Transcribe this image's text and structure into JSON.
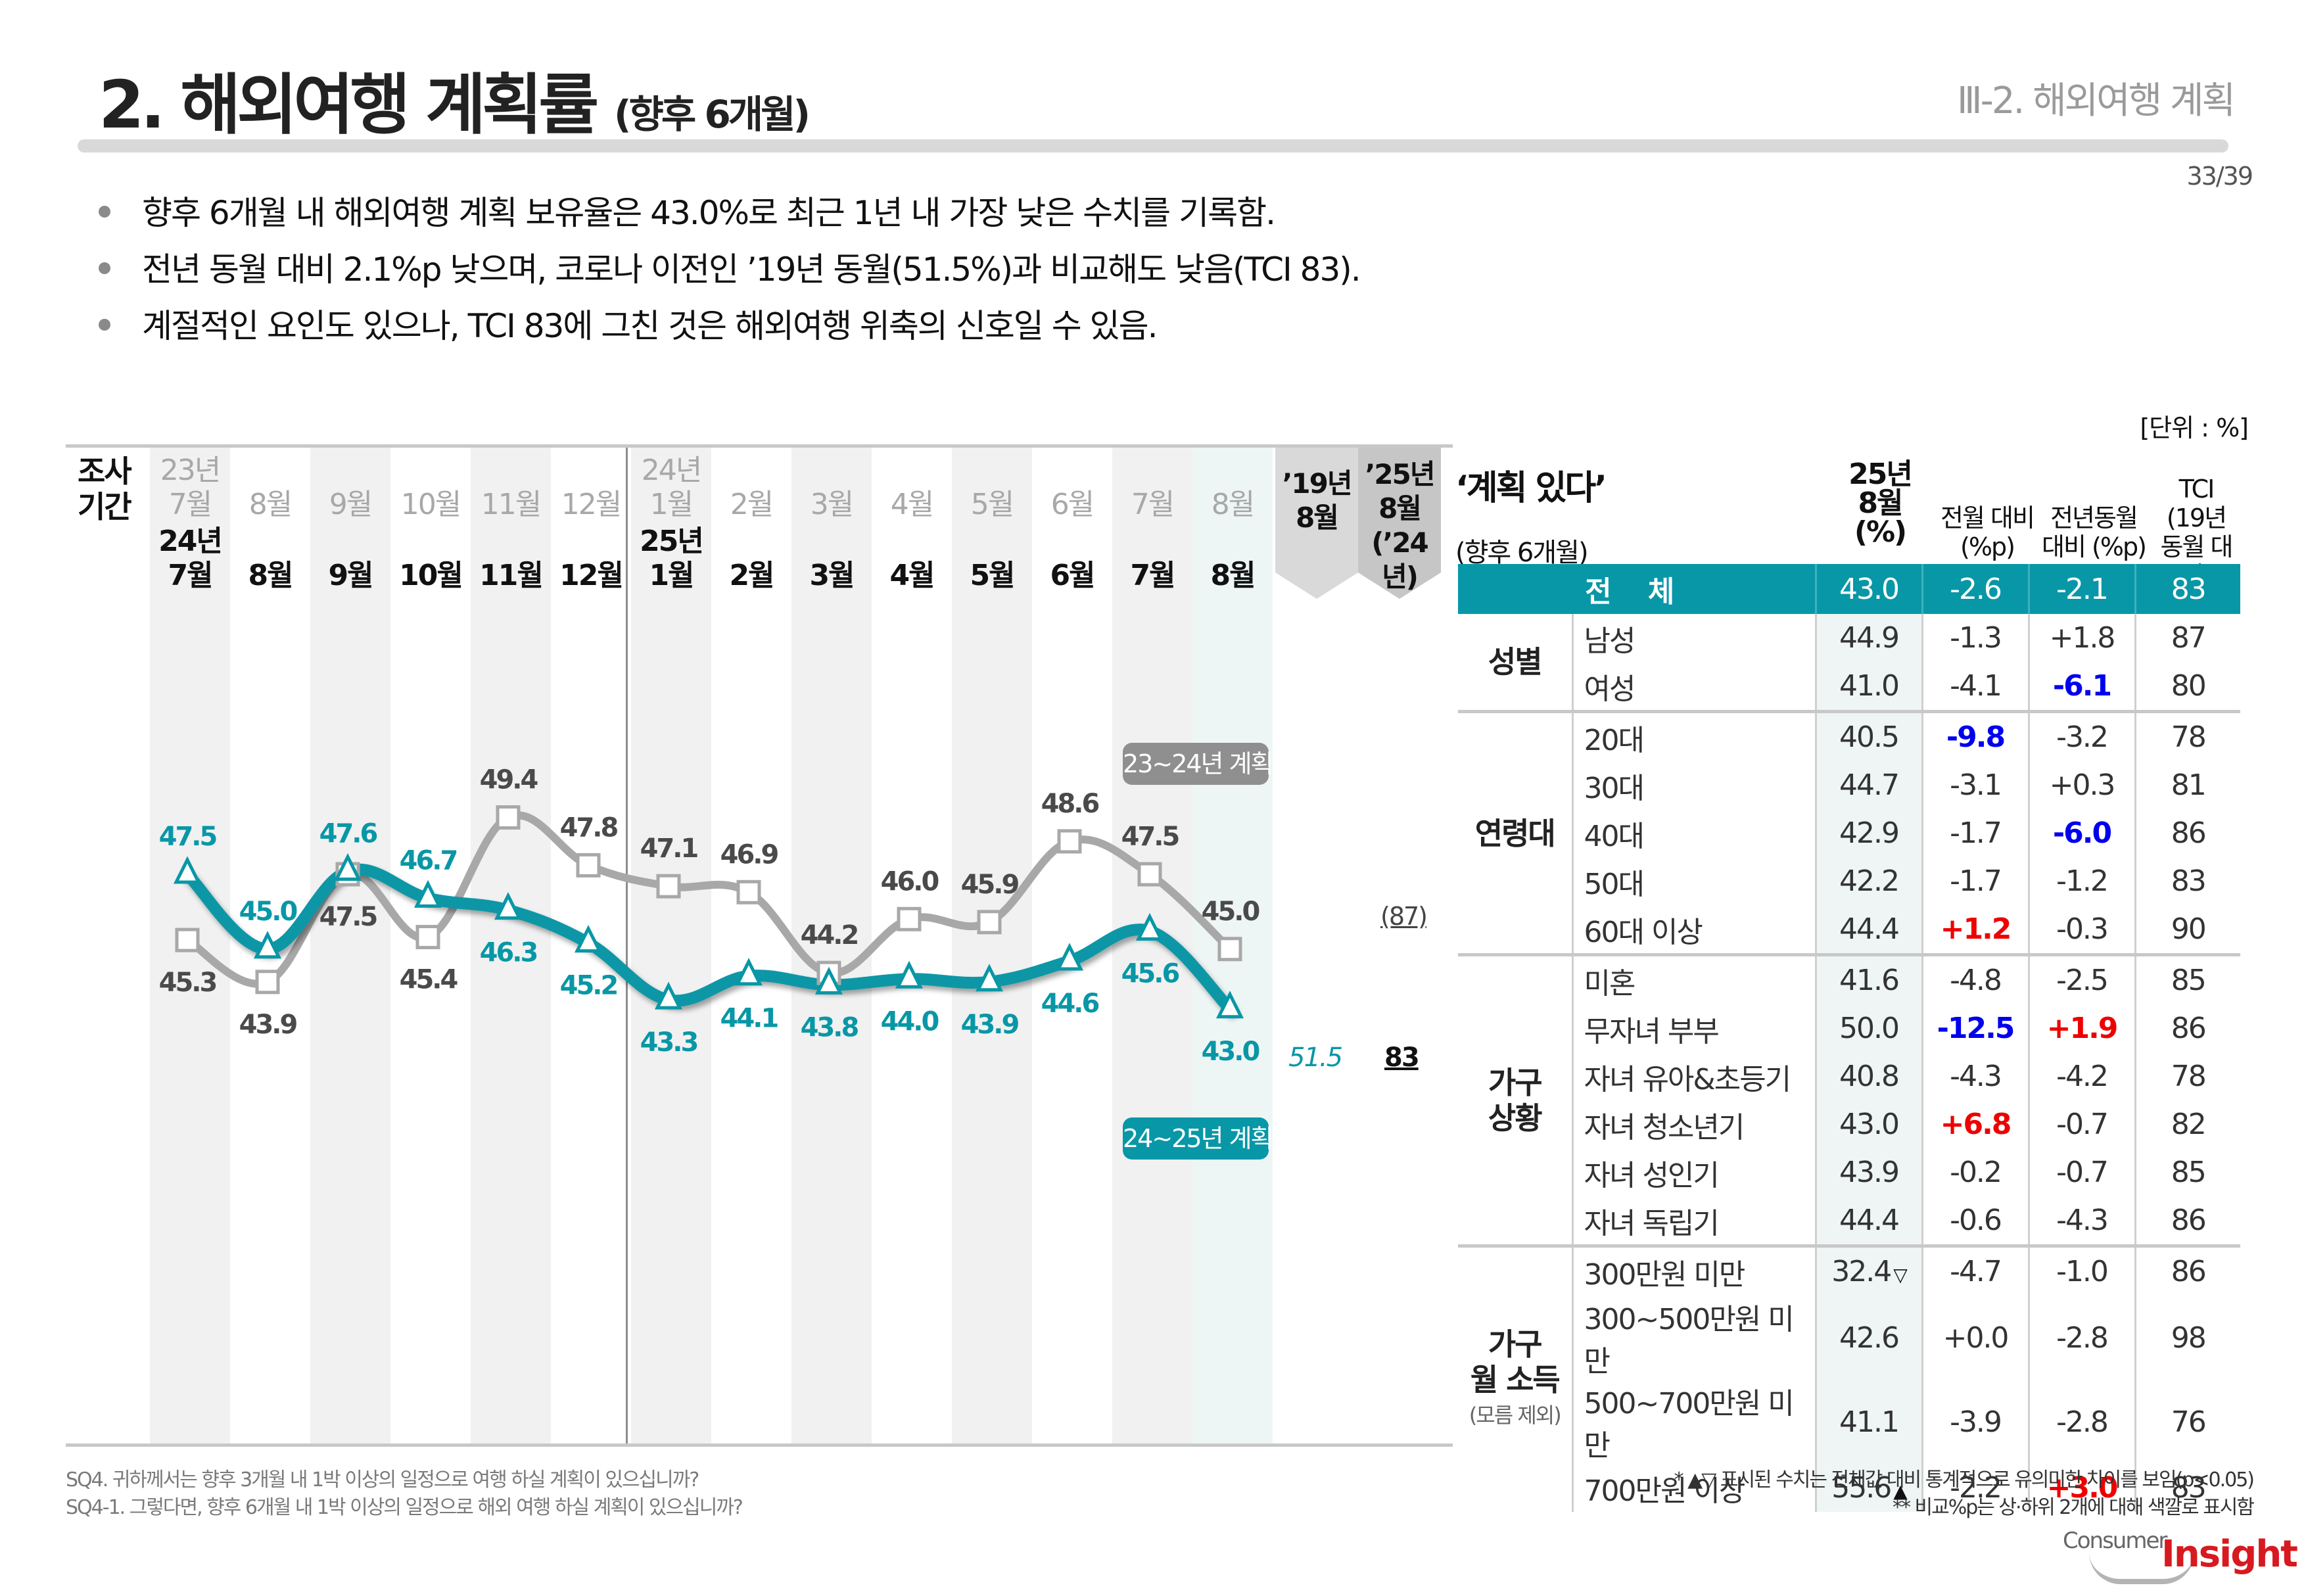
{
  "header": {
    "title": "2. 해외여행 계획률",
    "title_sub": "(향후 6개월)",
    "section": "Ⅲ-2. 해외여행 계획",
    "page": "33/39"
  },
  "bullets": [
    "향후 6개월 내 해외여행 계획 보유율은 43.0%로 최근 1년 내 가장 낮은 수치를 기록함.",
    "전년 동월 대비 2.1%p 낮으며, 코로나 이전인 ’19년 동월(51.5%)과 비교해도 낮음(TCI 83).",
    "계절적인 요인도 있으나, TCI 83에 그친 것은 해외여행 위축의 신호일 수 있음."
  ],
  "unit": "[단위 : %]",
  "period_label": "조사\n기간",
  "colors": {
    "teal": "#0897a6",
    "gray_line": "#a8a8a8",
    "gray_text": "#4a4a4a",
    "blue_highlight": "#0000ee",
    "red_highlight": "#ee0000"
  },
  "chart_data": {
    "type": "line",
    "title": "해외여행 계획률 (향후 6개월)",
    "x_prev": [
      "23년 7월",
      "8월",
      "9월",
      "10월",
      "11월",
      "12월",
      "24년 1월",
      "2월",
      "3월",
      "4월",
      "5월",
      "6월",
      "7월",
      "8월"
    ],
    "x_prev_lines": [
      [
        "23년",
        "7월"
      ],
      [
        "8월"
      ],
      [
        "9월"
      ],
      [
        "10월"
      ],
      [
        "11월"
      ],
      [
        "12월"
      ],
      [
        "24년",
        "1월"
      ],
      [
        "2월"
      ],
      [
        "3월"
      ],
      [
        "4월"
      ],
      [
        "5월"
      ],
      [
        "6월"
      ],
      [
        "7월"
      ],
      [
        "8월"
      ]
    ],
    "x_cur_lines": [
      [
        "24년",
        "7월"
      ],
      [
        "8월"
      ],
      [
        "9월"
      ],
      [
        "10월"
      ],
      [
        "11월"
      ],
      [
        "12월"
      ],
      [
        "25년",
        "1월"
      ],
      [
        "2월"
      ],
      [
        "3월"
      ],
      [
        "4월"
      ],
      [
        "5월"
      ],
      [
        "6월"
      ],
      [
        "7월"
      ],
      [
        "8월"
      ]
    ],
    "series": [
      {
        "name": "23~24년 계획",
        "color": "#a8a8a8",
        "marker": "square",
        "values": [
          45.3,
          43.9,
          47.5,
          45.4,
          49.4,
          47.8,
          47.1,
          46.9,
          44.2,
          46.0,
          45.9,
          48.6,
          47.5,
          45.0
        ]
      },
      {
        "name": "24~25년 계획",
        "color": "#0897a6",
        "marker": "triangle",
        "values": [
          47.5,
          45.0,
          47.6,
          46.7,
          46.3,
          45.2,
          43.3,
          44.1,
          43.8,
          44.0,
          43.9,
          44.6,
          45.6,
          43.0
        ]
      }
    ],
    "reference_columns": [
      {
        "label": "’19년\n8월",
        "value": "51.5"
      },
      {
        "label": "’25년\n8월\n(’24년)",
        "value": "83",
        "prev_value": "(87)"
      }
    ],
    "legend": [
      "23~24년 계획",
      "24~25년 계획"
    ],
    "ylim": [
      42,
      50
    ],
    "grid": false
  },
  "table": {
    "title": "‘계획 있다’",
    "subtitle": "(향후 6개월)",
    "headers": [
      "25년\n8월\n(%)",
      "전월 대비\n(%p)",
      "전년동월\n대비 (%p)",
      "TCI\n(19년\n동월 대비)"
    ],
    "total": {
      "label": "전 체",
      "pct": "43.0",
      "mom": "-2.6",
      "yoy": "-2.1",
      "tci": "83"
    },
    "groups": [
      {
        "name": "성별",
        "rows": [
          {
            "label": "남성",
            "pct": "44.9",
            "mom": "-1.3",
            "yoy": "+1.8",
            "tci": "87"
          },
          {
            "label": "여성",
            "pct": "41.0",
            "mom": "-4.1",
            "yoy": "-6.1",
            "yoy_color": "blue",
            "tci": "80"
          }
        ]
      },
      {
        "name": "연령대",
        "rows": [
          {
            "label": "20대",
            "pct": "40.5",
            "mom": "-9.8",
            "mom_color": "blue",
            "yoy": "-3.2",
            "tci": "78"
          },
          {
            "label": "30대",
            "pct": "44.7",
            "mom": "-3.1",
            "yoy": "+0.3",
            "tci": "81"
          },
          {
            "label": "40대",
            "pct": "42.9",
            "mom": "-1.7",
            "yoy": "-6.0",
            "yoy_color": "blue",
            "tci": "86"
          },
          {
            "label": "50대",
            "pct": "42.2",
            "mom": "-1.7",
            "yoy": "-1.2",
            "tci": "83"
          },
          {
            "label": "60대 이상",
            "pct": "44.4",
            "mom": "+1.2",
            "mom_color": "red",
            "yoy": "-0.3",
            "tci": "90"
          }
        ]
      },
      {
        "name": "가구\n상황",
        "rows": [
          {
            "label": "미혼",
            "pct": "41.6",
            "mom": "-4.8",
            "yoy": "-2.5",
            "tci": "85"
          },
          {
            "label": "무자녀 부부",
            "pct": "50.0",
            "mom": "-12.5",
            "mom_color": "blue",
            "yoy": "+1.9",
            "yoy_color": "red",
            "tci": "86"
          },
          {
            "label": "자녀 유아&초등기",
            "pct": "40.8",
            "mom": "-4.3",
            "yoy": "-4.2",
            "tci": "78"
          },
          {
            "label": "자녀 청소년기",
            "pct": "43.0",
            "mom": "+6.8",
            "mom_color": "red",
            "yoy": "-0.7",
            "tci": "82"
          },
          {
            "label": "자녀 성인기",
            "pct": "43.9",
            "mom": "-0.2",
            "yoy": "-0.7",
            "tci": "85"
          },
          {
            "label": "자녀 독립기",
            "pct": "44.4",
            "mom": "-0.6",
            "yoy": "-4.3",
            "tci": "86"
          }
        ]
      },
      {
        "name": "가구\n월 소득",
        "note": "(모름 제외)",
        "rows": [
          {
            "label": "300만원 미만",
            "pct": "32.4",
            "sig": "▽",
            "mom": "-4.7",
            "yoy": "-1.0",
            "tci": "86"
          },
          {
            "label": "300~500만원 미만",
            "pct": "42.6",
            "mom": "+0.0",
            "yoy": "-2.8",
            "tci": "98"
          },
          {
            "label": "500~700만원 미만",
            "pct": "41.1",
            "mom": "-3.9",
            "yoy": "-2.8",
            "tci": "76"
          },
          {
            "label": "700만원 이상",
            "pct": "55.6",
            "sig": "▲",
            "mom": "-2.2",
            "yoy": "+3.0",
            "yoy_color": "red",
            "tci": "83"
          }
        ]
      }
    ]
  },
  "footer": {
    "questions": [
      "SQ4. 귀하께서는 향후 3개월 내 1박 이상의 일정으로 여행 하실 계획이 있으십니까?",
      "SQ4-1. 그렇다면, 향후 6개월 내 1박 이상의 일정으로 해외 여행 하실 계획이 있으십니까?"
    ],
    "notes": [
      "* ▲▽ 표시된 수치는 전체값 대비 통계적으로 유의미한 차이를 보임(p<0.05)",
      "** 비교%p는 상·하위 2개에 대해 색깔로 표시함"
    ],
    "logo_a": "Consumer",
    "logo_b": "Insight"
  }
}
